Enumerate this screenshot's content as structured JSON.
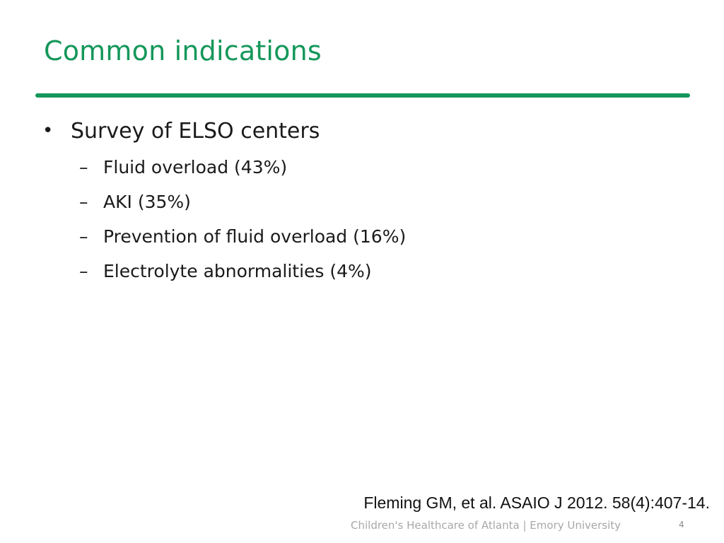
{
  "slide": {
    "title": "Common indications",
    "bullets": [
      {
        "glyph": "•",
        "text": "Survey of ELSO centers",
        "sub_items": [
          {
            "glyph": "–",
            "text": "Fluid overload (43%)"
          },
          {
            "glyph": "–",
            "text": "AKI (35%)"
          },
          {
            "glyph": "–",
            "text": "Prevention of fluid overload (16%)"
          },
          {
            "glyph": "–",
            "text": "Electrolyte abnormalities (4%)"
          }
        ]
      }
    ],
    "citation": "Fleming GM, et al.  ASAIO J 2012. 58(4):407-14.",
    "footer": {
      "organization": "Children's Healthcare of Atlanta | Emory University",
      "page_number": "4"
    }
  },
  "colors": {
    "accent": "#14975a",
    "text": "#1a1a1a",
    "footer_text": "#a8a8a8"
  }
}
